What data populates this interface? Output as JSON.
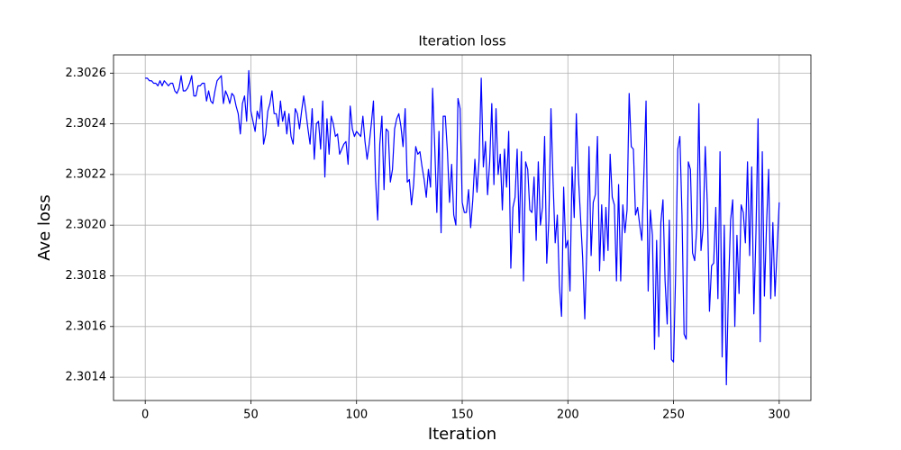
{
  "chart_data": {
    "type": "line",
    "title": "Iteration loss",
    "x_label": "Iteration",
    "y_label": "Ave loss",
    "color": "#0000ff",
    "grid": true,
    "xlim": [
      -15,
      315
    ],
    "xticks": [
      0,
      50,
      100,
      150,
      200,
      250,
      300
    ],
    "ylim": [
      2.301308,
      2.302672
    ],
    "yticks": [
      2.3014,
      2.3016,
      2.3018,
      {
        "value": 2.302,
        "label": "2.3020"
      },
      2.3022,
      2.3024,
      2.3026
    ],
    "x": [
      0,
      1,
      2,
      3,
      4,
      5,
      6,
      7,
      8,
      9,
      10,
      11,
      12,
      13,
      14,
      15,
      16,
      17,
      18,
      19,
      20,
      21,
      22,
      23,
      24,
      25,
      26,
      27,
      28,
      29,
      30,
      31,
      32,
      33,
      34,
      35,
      36,
      37,
      38,
      39,
      40,
      41,
      42,
      43,
      44,
      45,
      46,
      47,
      48,
      49,
      50,
      51,
      52,
      53,
      54,
      55,
      56,
      57,
      58,
      59,
      60,
      61,
      62,
      63,
      64,
      65,
      66,
      67,
      68,
      69,
      70,
      71,
      72,
      73,
      74,
      75,
      76,
      77,
      78,
      79,
      80,
      81,
      82,
      83,
      84,
      85,
      86,
      87,
      88,
      89,
      90,
      91,
      92,
      93,
      94,
      95,
      96,
      97,
      98,
      99,
      100,
      101,
      102,
      103,
      104,
      105,
      106,
      107,
      108,
      109,
      110,
      111,
      112,
      113,
      114,
      115,
      116,
      117,
      118,
      119,
      120,
      121,
      122,
      123,
      124,
      125,
      126,
      127,
      128,
      129,
      130,
      131,
      132,
      133,
      134,
      135,
      136,
      137,
      138,
      139,
      140,
      141,
      142,
      143,
      144,
      145,
      146,
      147,
      148,
      149,
      150,
      151,
      152,
      153,
      154,
      155,
      156,
      157,
      158,
      159,
      160,
      161,
      162,
      163,
      164,
      165,
      166,
      167,
      168,
      169,
      170,
      171,
      172,
      173,
      174,
      175,
      176,
      177,
      178,
      179,
      180,
      181,
      182,
      183,
      184,
      185,
      186,
      187,
      188,
      189,
      190,
      191,
      192,
      193,
      194,
      195,
      196,
      197,
      198,
      199,
      200,
      201,
      202,
      203,
      204,
      205,
      206,
      207,
      208,
      209,
      210,
      211,
      212,
      213,
      214,
      215,
      216,
      217,
      218,
      219,
      220,
      221,
      222,
      223,
      224,
      225,
      226,
      227,
      228,
      229,
      230,
      231,
      232,
      233,
      234,
      235,
      236,
      237,
      238,
      239,
      240,
      241,
      242,
      243,
      244,
      245,
      246,
      247,
      248,
      249,
      250,
      251,
      252,
      253,
      254,
      255,
      256,
      257,
      258,
      259,
      260,
      261,
      262,
      263,
      264,
      265,
      266,
      267,
      268,
      269,
      270,
      271,
      272,
      273,
      274,
      275,
      276,
      277,
      278,
      279,
      280,
      281,
      282,
      283,
      284,
      285,
      286,
      287,
      288,
      289,
      290,
      291,
      292,
      293,
      294,
      295,
      296,
      297,
      298,
      299,
      300
    ],
    "values": [
      2.30258,
      2.30258,
      2.30257,
      2.30257,
      2.30256,
      2.30256,
      2.30255,
      2.30257,
      2.30255,
      2.30257,
      2.30256,
      2.30255,
      2.30256,
      2.30256,
      2.30253,
      2.30252,
      2.30254,
      2.30259,
      2.30253,
      2.30253,
      2.30254,
      2.30256,
      2.30259,
      2.30251,
      2.30251,
      2.30255,
      2.30255,
      2.30256,
      2.30256,
      2.30249,
      2.30253,
      2.30249,
      2.30248,
      2.30253,
      2.30257,
      2.30258,
      2.30259,
      2.30248,
      2.30253,
      2.30251,
      2.30248,
      2.30252,
      2.30251,
      2.30247,
      2.30244,
      2.30236,
      2.30248,
      2.30251,
      2.30241,
      2.30261,
      2.30245,
      2.30241,
      2.30237,
      2.30245,
      2.30242,
      2.30251,
      2.30232,
      2.30236,
      2.30245,
      2.30248,
      2.30253,
      2.30244,
      2.30244,
      2.30239,
      2.30249,
      2.30241,
      2.30245,
      2.30236,
      2.30244,
      2.30235,
      2.30232,
      2.30246,
      2.30244,
      2.30238,
      2.30245,
      2.30251,
      2.30245,
      2.30238,
      2.30232,
      2.30246,
      2.30226,
      2.3024,
      2.30241,
      2.3023,
      2.30249,
      2.30219,
      2.30242,
      2.30228,
      2.30243,
      2.3024,
      2.30235,
      2.30236,
      2.30228,
      2.3023,
      2.30232,
      2.30233,
      2.30224,
      2.30247,
      2.30238,
      2.30235,
      2.30237,
      2.30236,
      2.30235,
      2.30243,
      2.30233,
      2.30226,
      2.30232,
      2.3024,
      2.30249,
      2.30218,
      2.30202,
      2.30232,
      2.30243,
      2.30214,
      2.30238,
      2.30237,
      2.30217,
      2.30222,
      2.30238,
      2.30242,
      2.30244,
      2.30239,
      2.30231,
      2.30246,
      2.30217,
      2.30218,
      2.30208,
      2.30216,
      2.30231,
      2.30228,
      2.30229,
      2.30223,
      2.30218,
      2.30211,
      2.30222,
      2.30215,
      2.30254,
      2.30231,
      2.30205,
      2.30237,
      2.30197,
      2.30243,
      2.30243,
      2.30229,
      2.30209,
      2.30224,
      2.30204,
      2.302,
      2.3025,
      2.30246,
      2.30209,
      2.30205,
      2.30205,
      2.30214,
      2.30199,
      2.3021,
      2.30226,
      2.30213,
      2.30226,
      2.30258,
      2.30223,
      2.30233,
      2.30212,
      2.30225,
      2.30248,
      2.30216,
      2.30246,
      2.3022,
      2.30228,
      2.30206,
      2.3023,
      2.30215,
      2.30237,
      2.30183,
      2.30207,
      2.30211,
      2.3023,
      2.30197,
      2.30229,
      2.30178,
      2.30225,
      2.30222,
      2.30206,
      2.30205,
      2.30219,
      2.30194,
      2.30225,
      2.302,
      2.30207,
      2.30235,
      2.30185,
      2.30202,
      2.30246,
      2.30217,
      2.30193,
      2.30204,
      2.30176,
      2.30164,
      2.30215,
      2.30191,
      2.30194,
      2.30174,
      2.30223,
      2.30203,
      2.30244,
      2.30219,
      2.30203,
      2.30187,
      2.30163,
      2.30192,
      2.30231,
      2.30188,
      2.30209,
      2.30212,
      2.30235,
      2.30182,
      2.30208,
      2.30186,
      2.30207,
      2.3019,
      2.30228,
      2.30211,
      2.30208,
      2.30178,
      2.30216,
      2.30178,
      2.30208,
      2.30197,
      2.30206,
      2.30252,
      2.30231,
      2.3023,
      2.30204,
      2.30207,
      2.302,
      2.30194,
      2.30221,
      2.30249,
      2.30174,
      2.30206,
      2.30196,
      2.30151,
      2.30194,
      2.30156,
      2.30201,
      2.3021,
      2.30178,
      2.30161,
      2.30202,
      2.30147,
      2.30146,
      2.30181,
      2.3023,
      2.30235,
      2.30204,
      2.30157,
      2.30155,
      2.30225,
      2.30222,
      2.30189,
      2.30186,
      2.30199,
      2.30248,
      2.3019,
      2.30199,
      2.30231,
      2.30208,
      2.30166,
      2.30184,
      2.30185,
      2.30207,
      2.30171,
      2.30229,
      2.30148,
      2.302,
      2.30137,
      2.30175,
      2.30202,
      2.3021,
      2.3016,
      2.30196,
      2.30173,
      2.30208,
      2.30205,
      2.30193,
      2.30225,
      2.30188,
      2.30223,
      2.30165,
      2.30197,
      2.30242,
      2.30154,
      2.30229,
      2.30172,
      2.302,
      2.30222,
      2.30171,
      2.30201,
      2.30172,
      2.3019,
      2.30209
    ]
  }
}
